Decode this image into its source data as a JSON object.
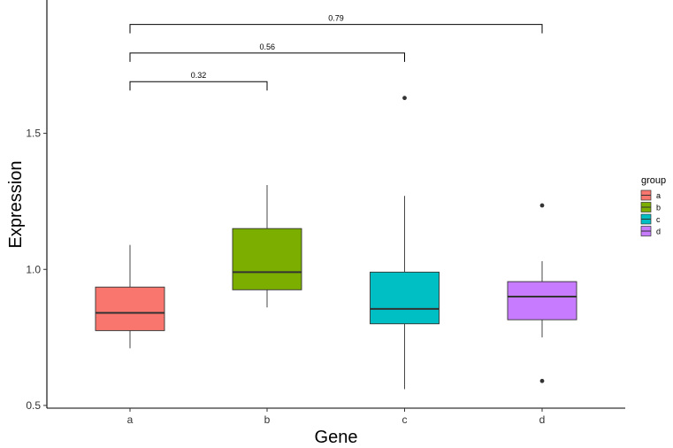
{
  "chart_data": {
    "type": "box",
    "title": "",
    "xlabel": "Gene",
    "ylabel": "Expression",
    "ylim": [
      0.49,
      1.99
    ],
    "yticks": [
      0.5,
      1.0,
      1.5
    ],
    "ytick_labels": [
      "0.5",
      "1.0",
      "1.5"
    ],
    "categories": [
      "a",
      "b",
      "c",
      "d"
    ],
    "series": [
      {
        "name": "a",
        "color": "#F8766D",
        "whisker_low": 0.71,
        "q1": 0.775,
        "median": 0.84,
        "q3": 0.935,
        "whisker_high": 1.09,
        "outliers": []
      },
      {
        "name": "b",
        "color": "#7CAE00",
        "whisker_low": 0.86,
        "q1": 0.925,
        "median": 0.99,
        "q3": 1.15,
        "whisker_high": 1.31,
        "outliers": []
      },
      {
        "name": "c",
        "color": "#00BFC4",
        "whisker_low": 0.56,
        "q1": 0.8,
        "median": 0.855,
        "q3": 0.99,
        "whisker_high": 1.27,
        "outliers": [
          1.63
        ]
      },
      {
        "name": "d",
        "color": "#C77CFF",
        "whisker_low": 0.75,
        "q1": 0.815,
        "median": 0.9,
        "q3": 0.955,
        "whisker_high": 1.03,
        "outliers": [
          1.235,
          0.59
        ]
      }
    ],
    "comparisons": [
      {
        "from": "a",
        "to": "b",
        "label": "0.32",
        "y": 1.69
      },
      {
        "from": "a",
        "to": "c",
        "label": "0.56",
        "y": 1.795
      },
      {
        "from": "a",
        "to": "d",
        "label": "0.79",
        "y": 1.9
      }
    ],
    "legend": {
      "title": "group",
      "entries": [
        "a",
        "b",
        "c",
        "d"
      ],
      "placement": "right"
    },
    "grid": false
  }
}
